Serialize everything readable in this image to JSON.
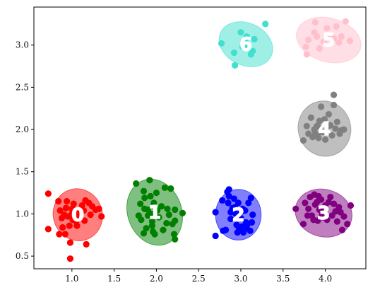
{
  "chart_data": {
    "type": "scatter",
    "title": "",
    "xlabel": "",
    "ylabel": "",
    "xlim": [
      0.55,
      4.48
    ],
    "ylim": [
      0.35,
      3.45
    ],
    "xticks": [
      "1.0",
      "1.5",
      "2.0",
      "2.5",
      "3.0",
      "3.5",
      "4.0"
    ],
    "yticks": [
      "0.5",
      "1.0",
      "1.5",
      "2.0",
      "2.5",
      "3.0"
    ],
    "grid": false,
    "legend": "none",
    "clusters": [
      {
        "label": "0",
        "color": "#ff0000",
        "ellipse": {
          "cx": 1.07,
          "cy": 0.99,
          "rx": 0.29,
          "ry": 0.31,
          "angle": 20
        },
        "points": [
          [
            0.72,
            1.24
          ],
          [
            0.72,
            0.82
          ],
          [
            0.84,
            1.15
          ],
          [
            0.86,
            1.04
          ],
          [
            0.88,
            0.95
          ],
          [
            0.89,
            0.84
          ],
          [
            0.91,
            0.99
          ],
          [
            0.93,
            1.07
          ],
          [
            0.94,
            1.15
          ],
          [
            0.95,
            0.97
          ],
          [
            0.97,
            0.86
          ],
          [
            0.98,
            0.66
          ],
          [
            0.98,
            0.47
          ],
          [
            1.0,
            1.0
          ],
          [
            1.01,
            0.93
          ],
          [
            1.02,
            1.12
          ],
          [
            1.03,
            1.05
          ],
          [
            1.05,
            0.91
          ],
          [
            1.07,
            0.98
          ],
          [
            1.09,
            1.03
          ],
          [
            1.1,
            0.95
          ],
          [
            1.12,
            1.1
          ],
          [
            1.14,
            1.04
          ],
          [
            1.15,
            0.92
          ],
          [
            1.16,
            1.16
          ],
          [
            1.17,
            0.64
          ],
          [
            1.2,
            1.13
          ],
          [
            1.22,
            0.99
          ],
          [
            1.24,
            1.09
          ],
          [
            1.28,
            1.05
          ],
          [
            1.32,
            1.06
          ],
          [
            1.35,
            0.97
          ],
          [
            0.85,
            0.76
          ],
          [
            0.92,
            0.76
          ],
          [
            1.0,
            1.06
          ],
          [
            1.06,
            0.86
          ]
        ]
      },
      {
        "label": "1",
        "color": "#008000",
        "ellipse": {
          "cx": 1.98,
          "cy": 1.02,
          "rx": 0.32,
          "ry": 0.4,
          "angle": 20
        },
        "points": [
          [
            1.76,
            1.36
          ],
          [
            1.79,
            0.98
          ],
          [
            1.81,
            1.12
          ],
          [
            1.82,
            0.93
          ],
          [
            1.85,
            1.27
          ],
          [
            1.85,
            0.77
          ],
          [
            1.86,
            1.06
          ],
          [
            1.88,
            0.83
          ],
          [
            1.9,
            1.05
          ],
          [
            1.9,
            0.98
          ],
          [
            1.92,
            1.4
          ],
          [
            1.93,
            1.21
          ],
          [
            1.94,
            1.0
          ],
          [
            1.95,
            0.91
          ],
          [
            1.96,
            0.79
          ],
          [
            1.97,
            1.13
          ],
          [
            1.98,
            0.76
          ],
          [
            2.0,
            1.25
          ],
          [
            2.01,
            1.04
          ],
          [
            2.03,
            0.96
          ],
          [
            2.06,
            1.09
          ],
          [
            2.08,
            0.81
          ],
          [
            2.1,
            1.31
          ],
          [
            2.13,
            1.06
          ],
          [
            2.15,
            0.99
          ],
          [
            2.17,
            1.3
          ],
          [
            2.19,
            0.88
          ],
          [
            2.21,
            0.76
          ],
          [
            2.22,
            1.05
          ],
          [
            2.22,
            0.92
          ],
          [
            2.22,
            0.7
          ],
          [
            2.31,
            1.01
          ],
          [
            1.86,
            1.19
          ],
          [
            1.95,
            0.86
          ],
          [
            2.12,
            0.89
          ]
        ]
      },
      {
        "label": "2",
        "color": "#0000ff",
        "ellipse": {
          "cx": 2.97,
          "cy": 0.99,
          "rx": 0.27,
          "ry": 0.3,
          "angle": 0
        },
        "points": [
          [
            2.7,
            1.02
          ],
          [
            2.7,
            0.74
          ],
          [
            2.78,
            1.16
          ],
          [
            2.79,
            0.8
          ],
          [
            2.82,
            0.81
          ],
          [
            2.84,
            1.26
          ],
          [
            2.85,
            1.13
          ],
          [
            2.86,
            1.21
          ],
          [
            2.86,
            1.29
          ],
          [
            2.88,
            0.94
          ],
          [
            2.9,
            1.07
          ],
          [
            2.92,
            1.18
          ],
          [
            2.93,
            1.08
          ],
          [
            2.94,
            1.0
          ],
          [
            2.95,
            0.87
          ],
          [
            2.96,
            0.78
          ],
          [
            2.97,
            1.13
          ],
          [
            2.98,
            0.82
          ],
          [
            3.0,
            0.95
          ],
          [
            3.01,
            0.85
          ],
          [
            3.02,
            1.06
          ],
          [
            3.03,
            0.78
          ],
          [
            3.05,
            1.04
          ],
          [
            3.06,
            0.9
          ],
          [
            3.07,
            0.83
          ],
          [
            3.08,
            0.88
          ],
          [
            3.09,
            1.13
          ],
          [
            3.11,
            0.8
          ],
          [
            3.13,
            0.9
          ],
          [
            3.14,
            0.99
          ],
          [
            3.12,
            1.19
          ],
          [
            2.88,
            1.02
          ],
          [
            3.0,
            1.02
          ]
        ]
      },
      {
        "label": "3",
        "color": "#800080",
        "ellipse": {
          "cx": 3.98,
          "cy": 1.01,
          "rx": 0.34,
          "ry": 0.28,
          "angle": -15
        },
        "points": [
          [
            3.65,
            1.06
          ],
          [
            3.74,
            0.88
          ],
          [
            3.76,
            1.13
          ],
          [
            3.79,
            0.98
          ],
          [
            3.8,
            1.06
          ],
          [
            3.82,
            1.2
          ],
          [
            3.84,
            0.98
          ],
          [
            3.86,
            0.93
          ],
          [
            3.87,
            1.23
          ],
          [
            3.88,
            1.11
          ],
          [
            3.9,
            1.14
          ],
          [
            3.91,
            0.92
          ],
          [
            3.92,
            1.21
          ],
          [
            3.93,
            1.05
          ],
          [
            3.95,
            1.17
          ],
          [
            3.97,
            0.96
          ],
          [
            3.98,
            1.03
          ],
          [
            4.0,
            1.1
          ],
          [
            4.02,
            0.93
          ],
          [
            4.04,
            1.14
          ],
          [
            4.06,
            1.2
          ],
          [
            4.08,
            0.98
          ],
          [
            4.1,
            1.12
          ],
          [
            4.12,
            1.03
          ],
          [
            4.14,
            0.91
          ],
          [
            4.16,
            1.08
          ],
          [
            4.18,
            1.02
          ],
          [
            4.2,
            0.81
          ],
          [
            4.22,
            0.97
          ],
          [
            4.26,
            0.88
          ],
          [
            4.3,
            1.1
          ],
          [
            3.96,
            0.99
          ]
        ]
      },
      {
        "label": "4",
        "color": "#808080",
        "ellipse": {
          "cx": 3.99,
          "cy": 2.01,
          "rx": 0.31,
          "ry": 0.33,
          "angle": 20
        },
        "points": [
          [
            3.74,
            1.87
          ],
          [
            3.78,
            2.04
          ],
          [
            3.8,
            1.95
          ],
          [
            3.83,
            2.14
          ],
          [
            3.85,
            1.91
          ],
          [
            3.87,
            2.0
          ],
          [
            3.88,
            1.95
          ],
          [
            3.9,
            2.04
          ],
          [
            3.92,
            1.9
          ],
          [
            3.93,
            2.1
          ],
          [
            3.94,
            2.02
          ],
          [
            3.95,
            2.27
          ],
          [
            3.97,
            1.97
          ],
          [
            3.99,
            2.12
          ],
          [
            4.0,
            1.88
          ],
          [
            4.02,
            1.99
          ],
          [
            4.04,
            2.18
          ],
          [
            4.06,
            2.05
          ],
          [
            4.08,
            1.93
          ],
          [
            4.1,
            2.29
          ],
          [
            4.1,
            2.41
          ],
          [
            4.12,
            2.01
          ],
          [
            4.14,
            2.09
          ],
          [
            4.17,
            1.95
          ],
          [
            4.19,
            1.99
          ],
          [
            4.22,
            2.0
          ],
          [
            3.91,
            1.94
          ]
        ]
      },
      {
        "label": "5",
        "color": "#ffc0cb",
        "ellipse": {
          "cx": 4.04,
          "cy": 3.06,
          "rx": 0.39,
          "ry": 0.26,
          "angle": -15
        },
        "points": [
          [
            3.77,
            2.98
          ],
          [
            3.78,
            2.89
          ],
          [
            3.8,
            3.06
          ],
          [
            3.87,
            3.15
          ],
          [
            3.88,
            3.27
          ],
          [
            3.9,
            3.1
          ],
          [
            3.93,
            2.96
          ],
          [
            3.98,
            3.04
          ],
          [
            4.02,
            3.2
          ],
          [
            4.06,
            3.1
          ],
          [
            4.1,
            3.08
          ],
          [
            4.13,
            3.22
          ],
          [
            4.16,
            3.03
          ],
          [
            4.19,
            3.1
          ],
          [
            4.24,
            3.28
          ],
          [
            4.29,
            3.05
          ]
        ]
      },
      {
        "label": "6",
        "color": "#40e0d0",
        "ellipse": {
          "cx": 3.06,
          "cy": 3.01,
          "rx": 0.33,
          "ry": 0.25,
          "angle": -25
        },
        "points": [
          [
            2.77,
            3.02
          ],
          [
            2.92,
            2.91
          ],
          [
            2.93,
            2.76
          ],
          [
            3.0,
            3.15
          ],
          [
            3.02,
            2.98
          ],
          [
            3.05,
            3.05
          ],
          [
            3.07,
            3.1
          ],
          [
            3.12,
            2.89
          ],
          [
            3.14,
            2.93
          ],
          [
            3.16,
            3.07
          ],
          [
            3.29,
            3.25
          ],
          [
            3.09,
            2.99
          ]
        ]
      }
    ]
  }
}
